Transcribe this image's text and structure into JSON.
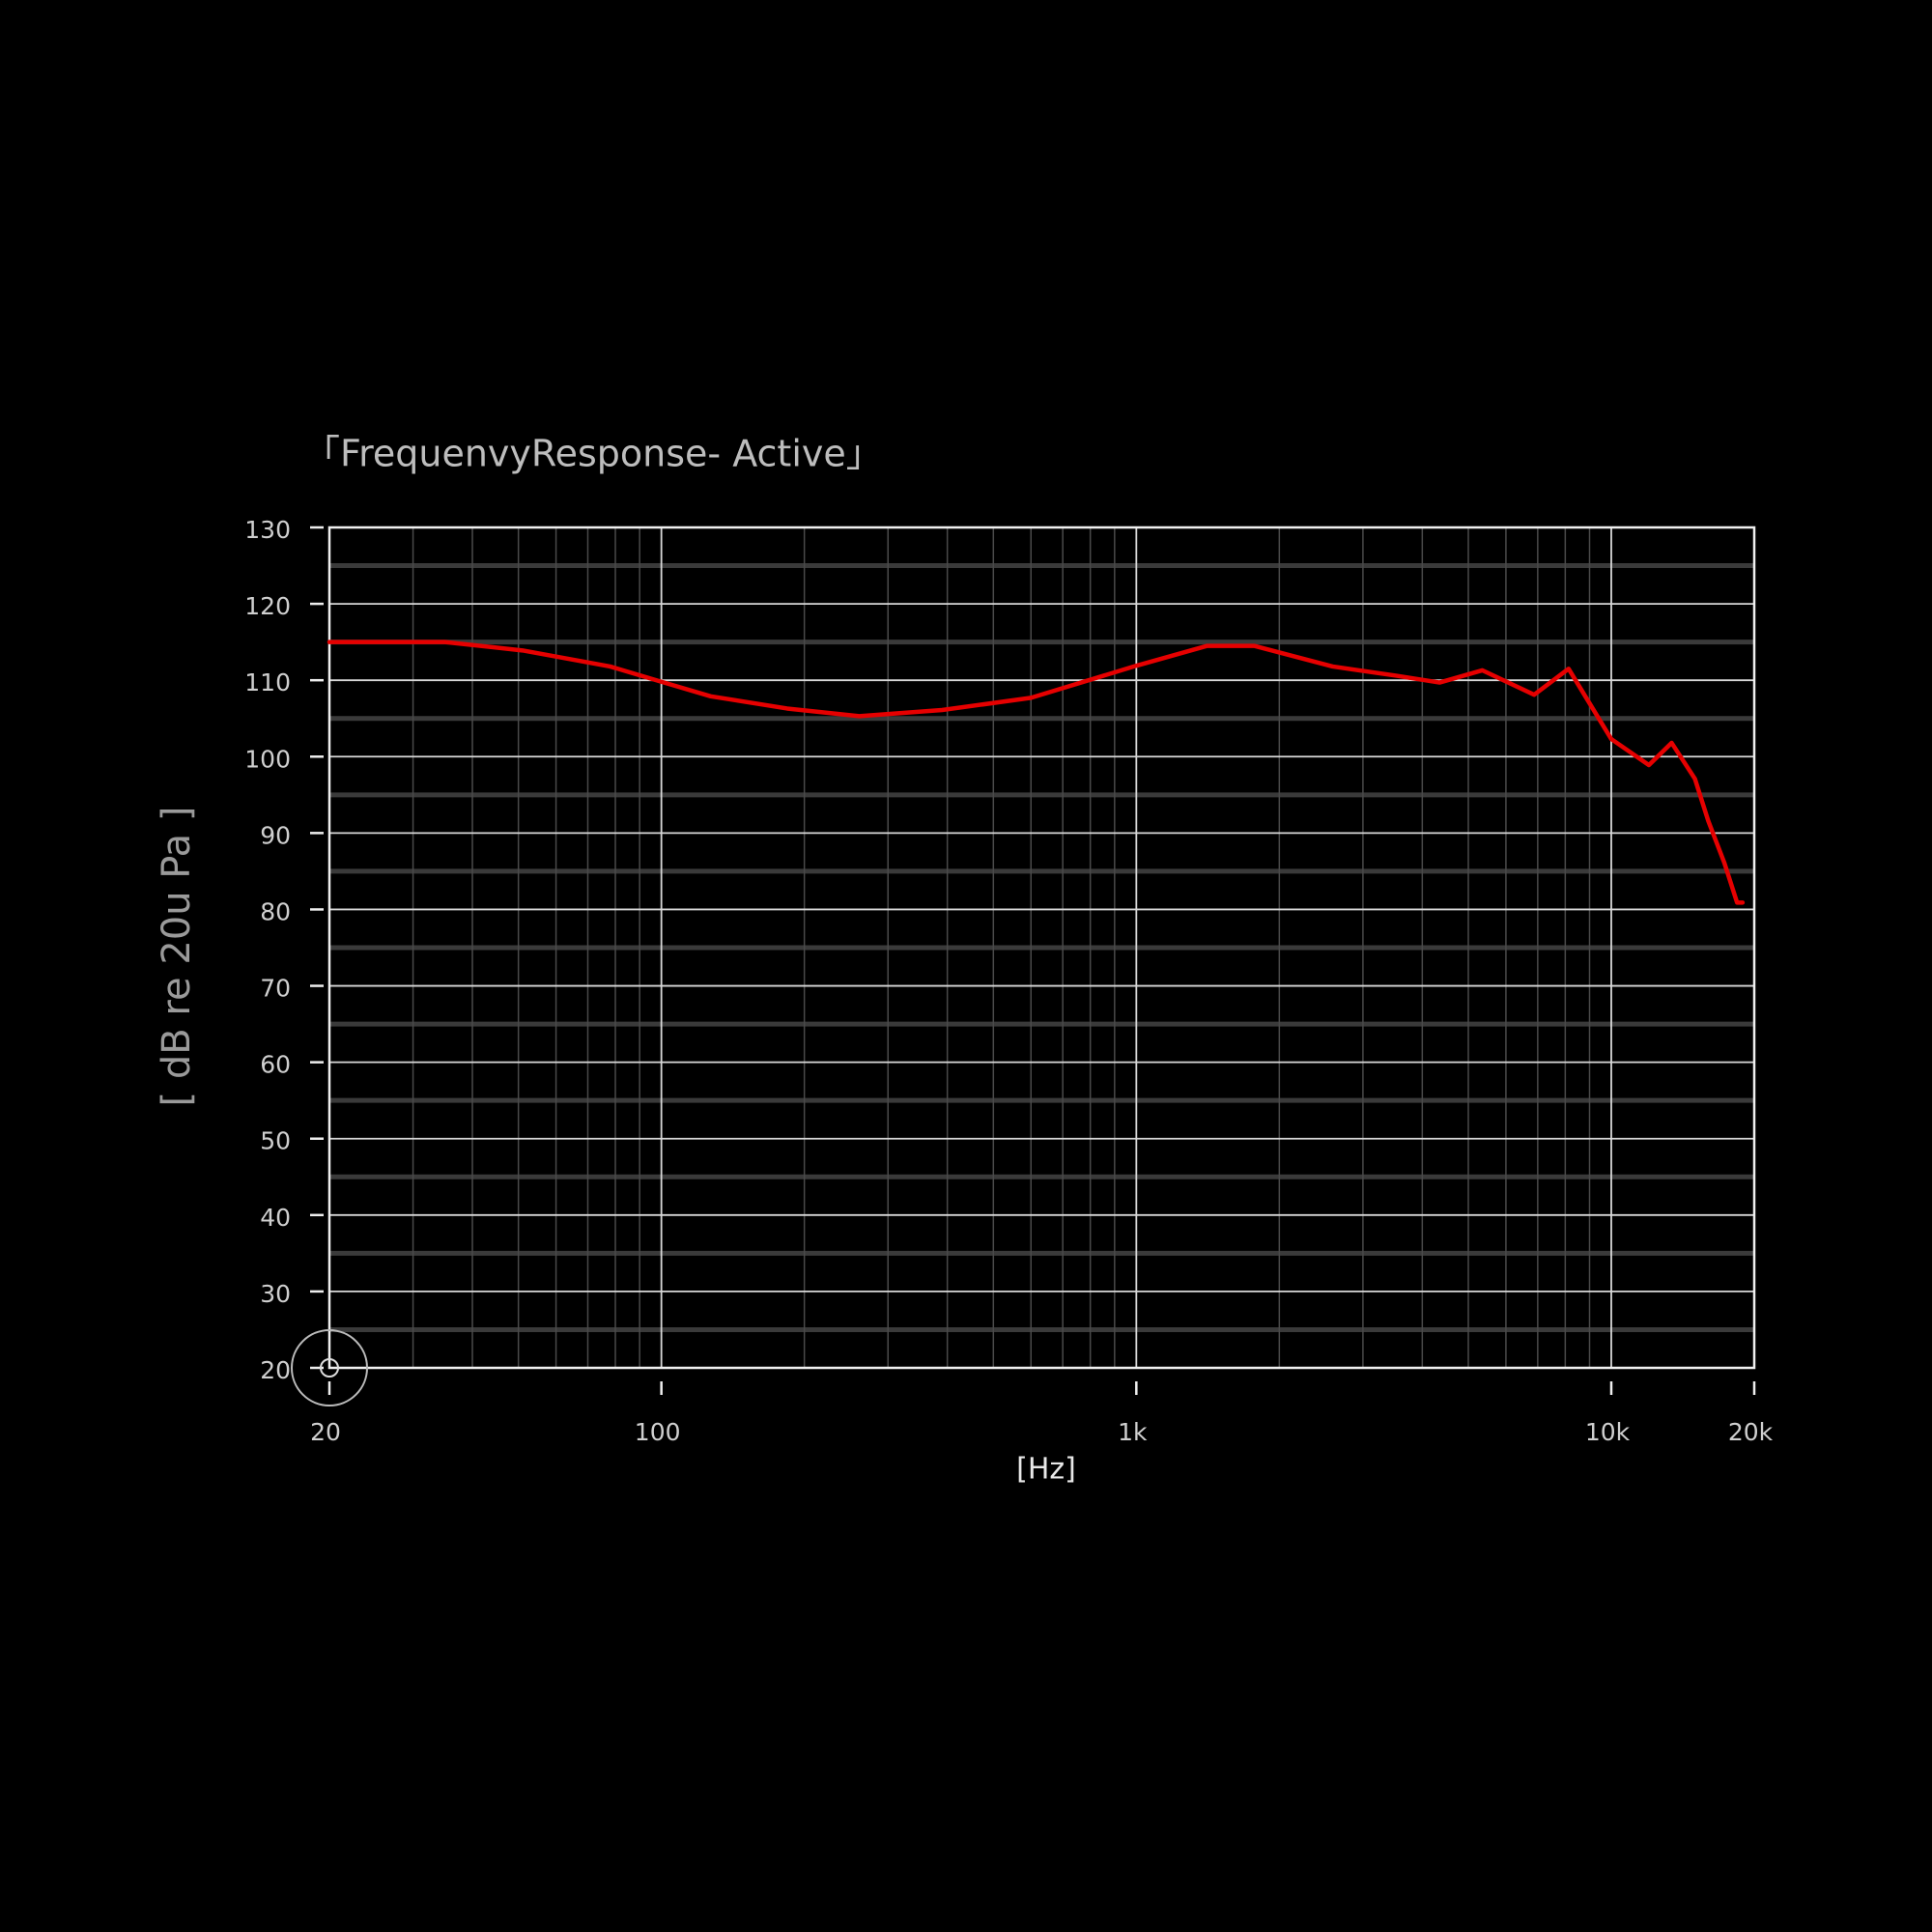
{
  "chart_data": {
    "type": "line",
    "title": "「FrequenvyResponse- Active」",
    "x_label": "[Hz]",
    "y_label": "[ dB re 20u Pa ]",
    "log_x": true,
    "xlim": [
      20,
      20000
    ],
    "ylim": [
      20,
      130
    ],
    "xticks": [
      20,
      100,
      {
        "value": 1000,
        "label": "1k"
      },
      {
        "value": 10000,
        "label": "10k"
      },
      {
        "value": 20000,
        "label": "20k"
      }
    ],
    "x_minor_ticks": [
      30,
      40,
      50,
      60,
      70,
      80,
      90,
      200,
      300,
      400,
      500,
      600,
      700,
      800,
      900,
      2000,
      3000,
      4000,
      5000,
      6000,
      7000,
      8000,
      9000
    ],
    "yticks": [
      20,
      30,
      40,
      50,
      60,
      70,
      80,
      90,
      100,
      110,
      120,
      130
    ],
    "y_minor_ticks": [
      25,
      35,
      45,
      55,
      65,
      75,
      85,
      95,
      105,
      115,
      125
    ],
    "grid": true,
    "series": [
      {
        "color": "#e60000",
        "x": [
          20,
          35,
          51,
          78,
          100,
          127,
          184,
          261,
          390,
          600,
          1000,
          1410,
          1770,
          2590,
          3520,
          4350,
          5350,
          6880,
          8130,
          10000,
          12000,
          13400,
          15000,
          16000,
          17300,
          18400,
          18900
        ],
        "values": [
          115,
          115,
          113.9,
          111.8,
          109.8,
          107.9,
          106.3,
          105.3,
          106.1,
          107.7,
          111.9,
          114.5,
          114.5,
          111.8,
          110.6,
          109.7,
          111.3,
          108.1,
          111.5,
          102.3,
          98.9,
          101.8,
          97.1,
          91.6,
          86.1,
          80.9,
          80.9
        ]
      }
    ]
  }
}
